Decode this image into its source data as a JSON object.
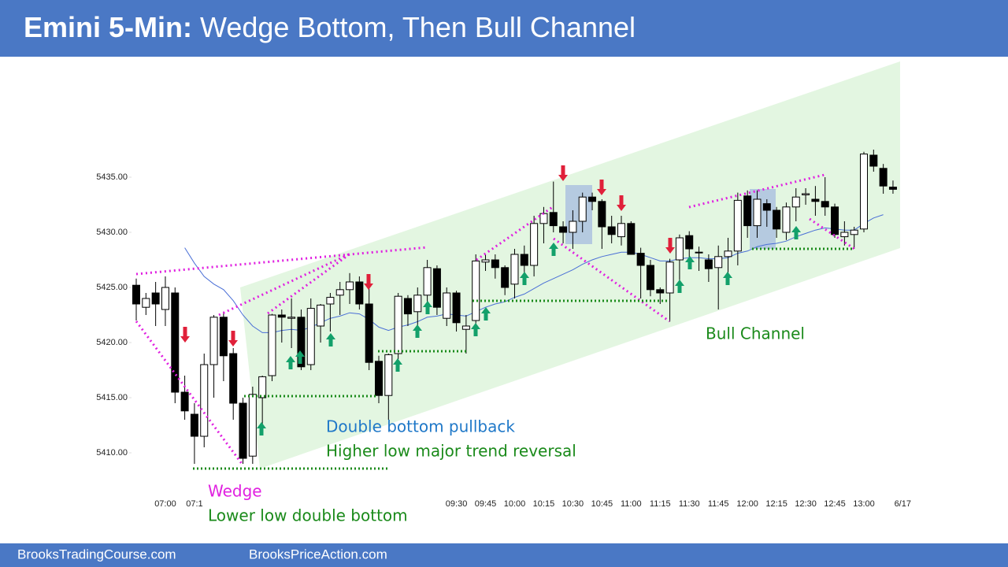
{
  "header": {
    "title_bold": "Emini 5-Min:",
    "title_rest": " Wedge Bottom, Then Bull Channel"
  },
  "footer": {
    "left": "BrooksTradingCourse.com",
    "right": "BrooksPriceAction.com"
  },
  "chart_data": {
    "type": "candlestick",
    "categories": [
      null,
      null,
      null,
      "07:00",
      null,
      null,
      "07:1",
      null,
      null,
      null,
      null,
      null,
      null,
      null,
      null,
      null,
      null,
      null,
      null,
      null,
      null,
      null,
      null,
      null,
      null,
      null,
      null,
      null,
      null,
      null,
      null,
      null,
      null,
      "09:30",
      null,
      null,
      "09:45",
      null,
      null,
      "10:00",
      null,
      null,
      "10:15",
      null,
      null,
      "10:30",
      null,
      null,
      "10:45",
      null,
      null,
      "11:00",
      null,
      null,
      "11:15",
      null,
      null,
      "11:30",
      null,
      null,
      "11:45",
      null,
      null,
      "12:00",
      null,
      null,
      "12:15",
      null,
      null,
      "12:30",
      null,
      null,
      "12:45",
      null,
      null,
      "13:00",
      null,
      null,
      null,
      "6/17"
    ],
    "open": [
      5425.2,
      5423.2,
      5424.5,
      5423,
      5424.5,
      5415.5,
      5413.5,
      5411.5,
      5418,
      5422.3,
      5419,
      5414.5,
      5409.7,
      5415,
      5417,
      5422.5,
      5422.2,
      5422.3,
      5418,
      5421.5,
      5423.5,
      5424.3,
      5424.8,
      5425.5,
      5423.5,
      5418.3,
      5415.2,
      5419,
      5424,
      5422.8,
      5424.3,
      5426.7,
      5422.2,
      5424.5,
      5421.2,
      5422,
      5427.3,
      5427.5,
      5426.8,
      5425.3,
      5428,
      5427,
      5430.8,
      5431.8,
      5430.5,
      5430,
      5431,
      5433.2,
      5432.8,
      5430.5,
      5429.6,
      5430.8,
      5428.1,
      5427,
      5424.8,
      5424.5,
      5427.5,
      5429.7,
      5428.2,
      5427.5,
      5426.8,
      5427.8,
      5428.3,
      5433.3,
      5430.6,
      5432.6,
      5432,
      5430,
      5432.3,
      5433.4,
      5433,
      5432.8,
      5432.3,
      5429.6,
      5429.8,
      5430.3,
      5437,
      5435.8,
      5434.1,
      null
    ],
    "high": [
      5425.8,
      5424.5,
      5425.5,
      5426,
      5425,
      5417,
      5414.5,
      5419,
      5422.5,
      5422.8,
      5419.5,
      5415,
      5416,
      5417,
      5422.6,
      5423,
      5424,
      5423,
      5424,
      5423.5,
      5424.5,
      5425.5,
      5426.3,
      5426,
      5425,
      5418.8,
      5419,
      5424.5,
      5424.3,
      5425,
      5427.5,
      5427,
      5425,
      5424.7,
      5422.5,
      5428,
      5428,
      5428,
      5427,
      5428.5,
      5428.8,
      5431.5,
      5432.3,
      5434.6,
      5431,
      5432,
      5433.6,
      5433.6,
      5433,
      5431.5,
      5431.5,
      5431,
      5428.6,
      5427.5,
      5425,
      5427.6,
      5429.8,
      5430.1,
      5428.7,
      5428,
      5428.8,
      5429.5,
      5433.6,
      5433.8,
      5433.8,
      5433,
      5432.3,
      5432.7,
      5434,
      5434,
      5434.2,
      5435,
      5432.6,
      5431,
      5430.5,
      5437.3,
      5437.5,
      5436.2,
      5434.7,
      null
    ],
    "low": [
      5422,
      5422.5,
      5421.5,
      5421.5,
      5414.5,
      5413,
      5409,
      5410.5,
      5415,
      5416.5,
      5413,
      5409,
      5409,
      5412,
      5416.5,
      5420,
      5419.5,
      5417.5,
      5417.5,
      5420,
      5421,
      5422.5,
      5423.5,
      5423,
      5417.5,
      5414.5,
      5413,
      5418.5,
      5421.5,
      5421.5,
      5423.5,
      5422.5,
      5421.5,
      5421,
      5419,
      5421,
      5426.5,
      5425.8,
      5424.3,
      5424,
      5426,
      5426,
      5429,
      5430,
      5429,
      5428.5,
      5430,
      5432,
      5428.5,
      5429,
      5428.8,
      5428.2,
      5424,
      5424.2,
      5423.5,
      5421.9,
      5425.5,
      5427.5,
      5426.5,
      5425.5,
      5423,
      5426,
      5427,
      5429.5,
      5429.5,
      5430.5,
      5429.5,
      5429.3,
      5431,
      5432.5,
      5431.5,
      5431.5,
      5429.5,
      5428.8,
      5428.5,
      5430,
      5435.5,
      5433.5,
      5433.5,
      null
    ],
    "close": [
      5423.5,
      5424,
      5423.5,
      5425,
      5415.5,
      5413.8,
      5411.5,
      5418,
      5422.3,
      5418.8,
      5414.5,
      5409.5,
      5415.3,
      5416.9,
      5422.5,
      5422.3,
      5422.3,
      5417.8,
      5423.1,
      5423.4,
      5424.1,
      5424.8,
      5425.5,
      5423.5,
      5418.2,
      5415.2,
      5418.9,
      5424.2,
      5422.6,
      5424.3,
      5426.8,
      5423.2,
      5424.5,
      5421.8,
      5421.5,
      5427.4,
      5427.5,
      5426.8,
      5425,
      5428,
      5427,
      5430.8,
      5431.7,
      5430.6,
      5430,
      5431,
      5433.2,
      5432.8,
      5430.5,
      5429.8,
      5430.8,
      5428,
      5427,
      5424.8,
      5424.5,
      5427.3,
      5429.5,
      5428.5,
      5428.2,
      5426.7,
      5427.8,
      5428.3,
      5432.9,
      5430.6,
      5433,
      5432,
      5430.3,
      5432.3,
      5433.2,
      5433.5,
      5432.8,
      5432.3,
      5429.8,
      5430,
      5430.2,
      5437.1,
      5436,
      5434.2,
      5433.9,
      null
    ],
    "average_line": {
      "color": "#4a6fd6",
      "values": [
        null,
        null,
        null,
        null,
        null,
        5428.6,
        5427.2,
        5426,
        5425.3,
        5424.8,
        5423.8,
        5422.5,
        5421.5,
        5420.9,
        5420.9,
        5421.1,
        5421.2,
        5421.1,
        5421.4,
        5421.8,
        5422.2,
        5422.4,
        5422.7,
        5422.6,
        5422.1,
        5421.4,
        5421.1,
        5421.4,
        5421.6,
        5421.9,
        5422.3,
        5422.4,
        5422.6,
        5422.5,
        5422.4,
        5422.8,
        5423.2,
        5423.5,
        5423.7,
        5424.1,
        5424.4,
        5424.9,
        5425.4,
        5425.8,
        5426.2,
        5426.6,
        5427.1,
        5427.5,
        5427.8,
        5428,
        5428.2,
        5428.2,
        5428,
        5427.7,
        5427.4,
        5427.4,
        5427.6,
        5427.7,
        5427.7,
        5427.6,
        5427.6,
        5427.7,
        5428.1,
        5428.3,
        5428.7,
        5428.9,
        5429,
        5429.2,
        5429.6,
        5429.9,
        5430.2,
        5430.4,
        5430.3,
        5430.2,
        5430.2,
        5430.8,
        5431.3,
        5431.6,
        null,
        null
      ]
    },
    "up_color": "#ffffff",
    "down_color": "#000000",
    "ylim": [
      5406,
      5446
    ],
    "yticks": [
      {
        "value": 5410,
        "label": "5410.00"
      },
      {
        "value": 5415,
        "label": "5415.00"
      },
      {
        "value": 5420,
        "label": "5420.00"
      },
      {
        "value": 5425,
        "label": "5425.00"
      },
      {
        "value": 5430,
        "label": "5430.00"
      },
      {
        "value": 5435,
        "label": "5435.00"
      }
    ],
    "annotations": [
      "Wedge",
      "Lower low double bottom",
      "Double bottom pullback",
      "Higher low major trend reversal",
      "Bull Channel"
    ]
  }
}
